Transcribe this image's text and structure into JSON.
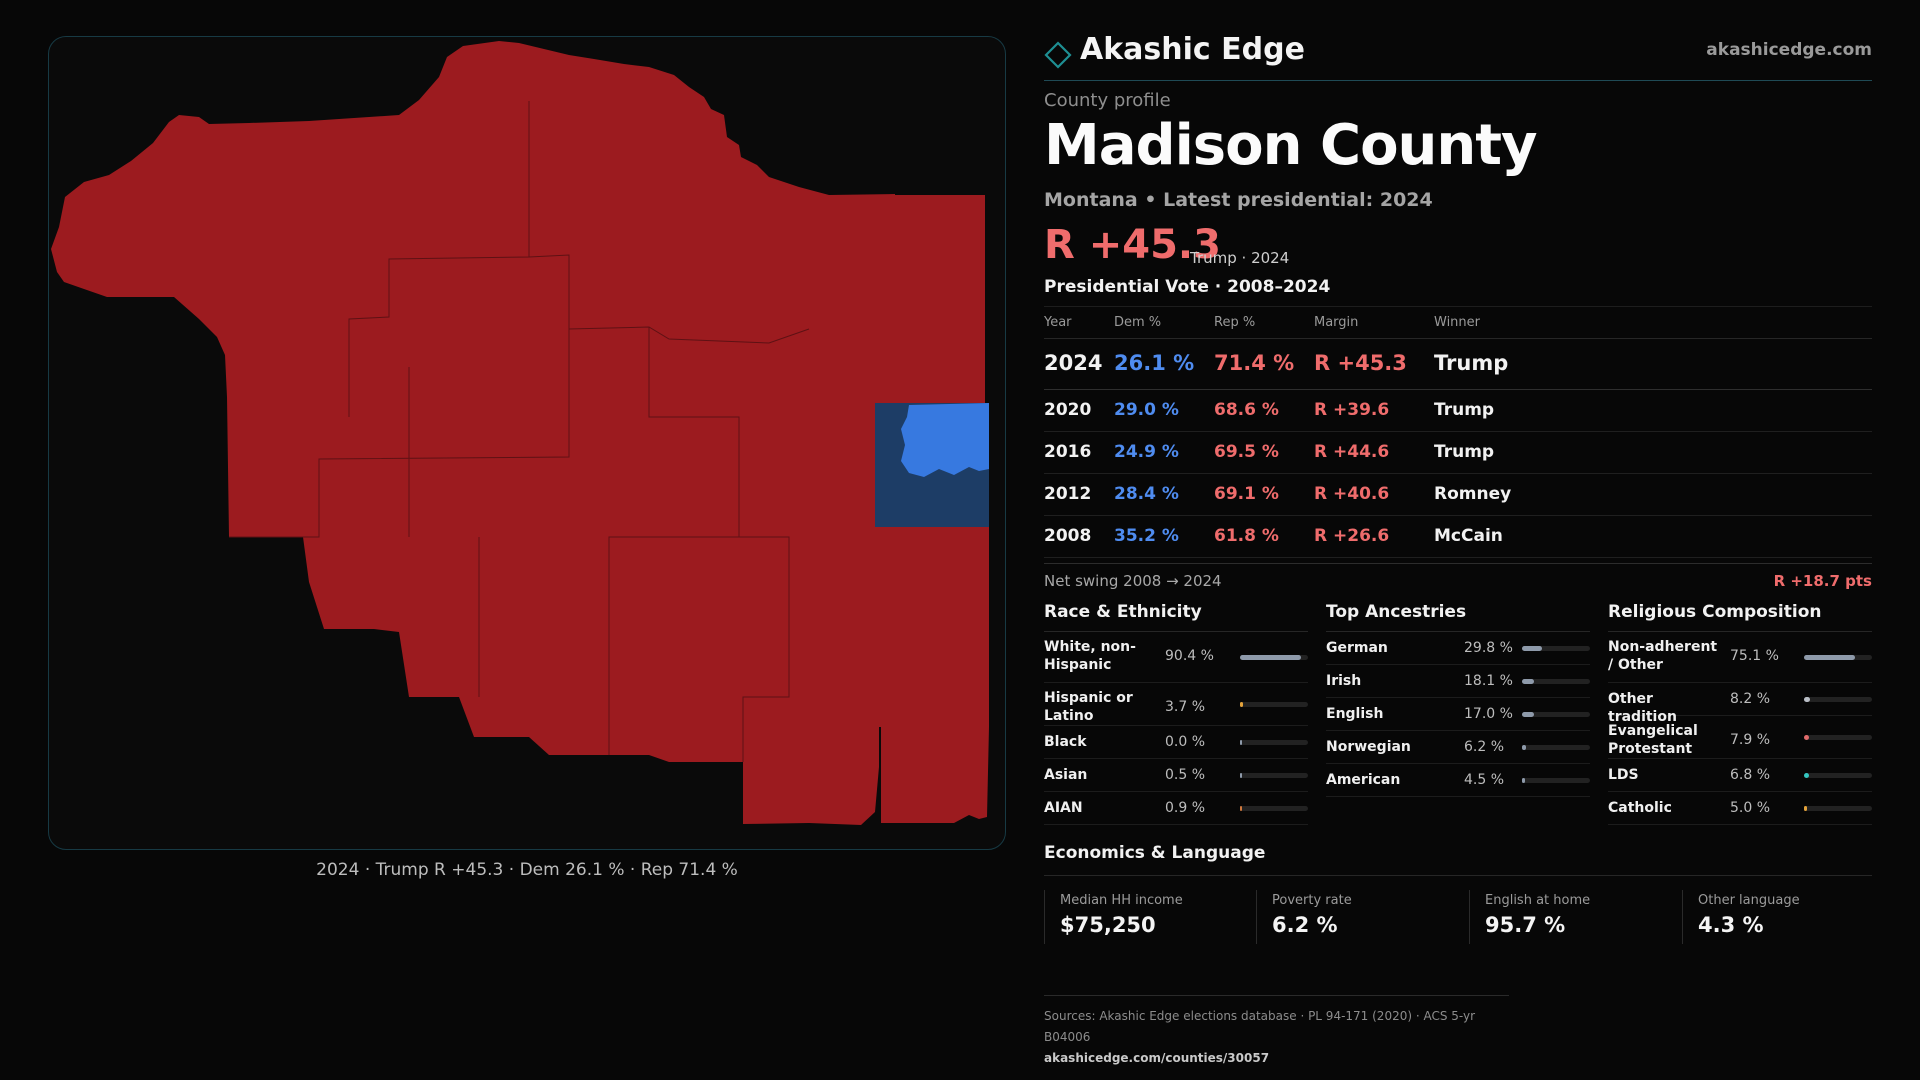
{
  "brand": {
    "name": "Akashic Edge",
    "url": "akashicedge.com"
  },
  "map": {
    "caption": "2024 · Trump R +45.3 · Dem 26.1 % · Rep 71.4 %"
  },
  "profile": {
    "kicker": "County profile",
    "title": "Madison County",
    "subtitle": "Montana • Latest presidential: 2024",
    "margin": "R +45.3",
    "margin_note": "Trump · 2024"
  },
  "vote": {
    "title": "Presidential Vote · 2008–2024",
    "headers": {
      "year": "Year",
      "dem": "Dem %",
      "rep": "Rep %",
      "margin": "Margin",
      "winner": "Winner"
    },
    "rows": [
      {
        "year": "2024",
        "dem": "26.1 %",
        "rep": "71.4 %",
        "margin": "R +45.3",
        "winner": "Trump"
      },
      {
        "year": "2020",
        "dem": "29.0 %",
        "rep": "68.6 %",
        "margin": "R +39.6",
        "winner": "Trump"
      },
      {
        "year": "2016",
        "dem": "24.9 %",
        "rep": "69.5 %",
        "margin": "R +44.6",
        "winner": "Trump"
      },
      {
        "year": "2012",
        "dem": "28.4 %",
        "rep": "69.1 %",
        "margin": "R +40.6",
        "winner": "Romney"
      },
      {
        "year": "2008",
        "dem": "35.2 %",
        "rep": "61.8 %",
        "margin": "R +26.6",
        "winner": "McCain"
      }
    ]
  },
  "swing": {
    "label": "Net swing 2008 → 2024",
    "value": "R +18.7 pts"
  },
  "race": {
    "title": "Race & Ethnicity",
    "items": [
      {
        "label": "White, non-Hispanic",
        "value": "90.4 %",
        "fraction": 0.904,
        "color": "#8e9aaa"
      },
      {
        "label": "Hispanic or Latino",
        "value": "3.7 %",
        "fraction": 0.037,
        "color": "#e3a23b"
      },
      {
        "label": "Black",
        "value": "0.0 %",
        "fraction": 0.0,
        "color": "#8e9aaa"
      },
      {
        "label": "Asian",
        "value": "0.5 %",
        "fraction": 0.005,
        "color": "#8e9aaa"
      },
      {
        "label": "AIAN",
        "value": "0.9 %",
        "fraction": 0.009,
        "color": "#d0793e"
      }
    ]
  },
  "ancestry": {
    "title": "Top Ancestries",
    "items": [
      {
        "label": "German",
        "value": "29.8 %",
        "fraction": 0.298,
        "color": "#8e9aaa"
      },
      {
        "label": "Irish",
        "value": "18.1 %",
        "fraction": 0.181,
        "color": "#8e9aaa"
      },
      {
        "label": "English",
        "value": "17.0 %",
        "fraction": 0.17,
        "color": "#8e9aaa"
      },
      {
        "label": "Norwegian",
        "value": "6.2 %",
        "fraction": 0.062,
        "color": "#8e9aaa"
      },
      {
        "label": "American",
        "value": "4.5 %",
        "fraction": 0.045,
        "color": "#8e9aaa"
      }
    ]
  },
  "religion": {
    "title": "Religious Composition",
    "items": [
      {
        "label": "Non-adherent / Other",
        "value": "75.1 %",
        "fraction": 0.751,
        "color": "#8e9aaa"
      },
      {
        "label": "Other tradition",
        "value": "8.2 %",
        "fraction": 0.082,
        "color": "#b9bec6"
      },
      {
        "label": "Evangelical Protestant",
        "value": "7.9 %",
        "fraction": 0.079,
        "color": "#e06b6b"
      },
      {
        "label": "LDS",
        "value": "6.8 %",
        "fraction": 0.068,
        "color": "#34c6c0"
      },
      {
        "label": "Catholic",
        "value": "5.0 %",
        "fraction": 0.05,
        "color": "#e3a23b"
      }
    ]
  },
  "economics": {
    "title": "Economics & Language",
    "items": [
      {
        "label": "Median HH income",
        "value": "$75,250"
      },
      {
        "label": "Poverty rate",
        "value": "6.2 %"
      },
      {
        "label": "English at home",
        "value": "95.7 %"
      },
      {
        "label": "Other language",
        "value": "4.3 %"
      }
    ]
  },
  "sources": {
    "text": "Sources: Akashic Edge elections database · PL 94-171 (2020) · ACS 5-yr B04006",
    "url": "akashicedge.com/counties/30057"
  },
  "colors": {
    "rep": "#9c1b1f",
    "dem": "#3779e0",
    "dem_dark": "#1d3d66",
    "accent": "#1f4a55"
  }
}
